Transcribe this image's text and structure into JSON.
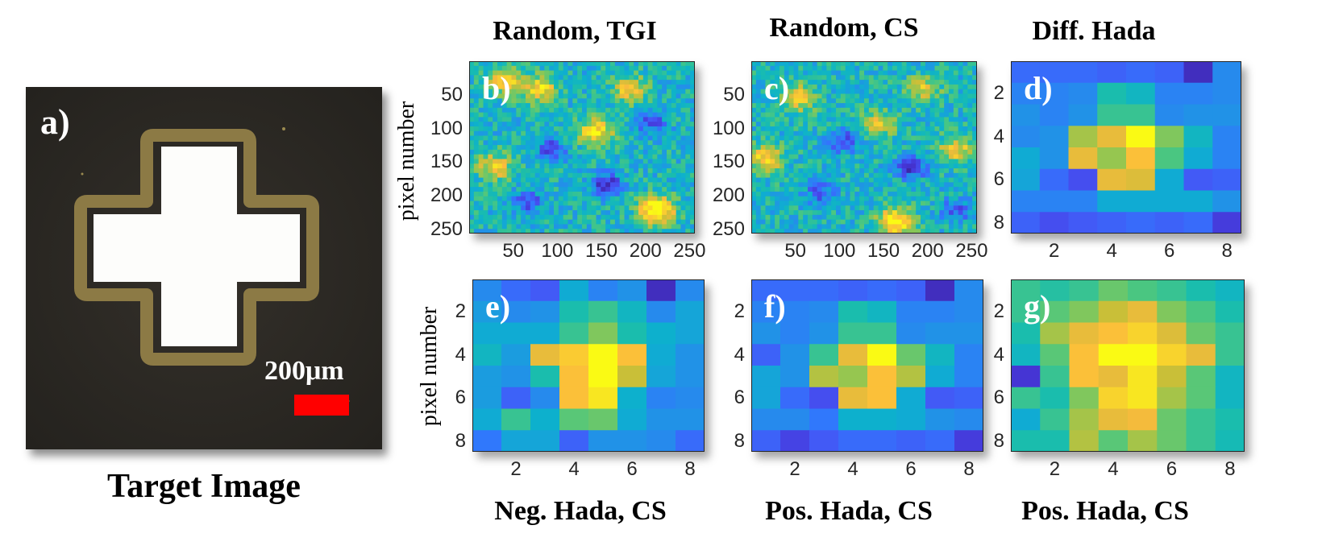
{
  "target": {
    "label": "a)",
    "caption": "Target Image",
    "scale_bar_text": "200μm",
    "scale_bar_color": "#ff0000"
  },
  "chart_data": [
    {
      "type": "heatmap",
      "id": "b",
      "title": "Random, TGI",
      "panel_label": "b)",
      "ylabel": "pixel number",
      "xlabel": "",
      "x_ticks": [
        "50",
        "100",
        "150",
        "200",
        "250"
      ],
      "y_ticks": [
        "50",
        "100",
        "150",
        "200",
        "250"
      ],
      "resolution": 48,
      "colormap": "parula",
      "blobs": [
        [
          0.82,
          0.85,
          0.7
        ],
        [
          0.55,
          0.4,
          0.5
        ],
        [
          0.3,
          0.15,
          0.45
        ],
        [
          0.1,
          0.6,
          0.4
        ],
        [
          0.7,
          0.15,
          0.4
        ],
        [
          0.15,
          0.1,
          0.4
        ]
      ],
      "dips": [
        [
          0.6,
          0.7,
          0.4
        ],
        [
          0.35,
          0.5,
          0.35
        ],
        [
          0.8,
          0.35,
          0.3
        ],
        [
          0.25,
          0.8,
          0.3
        ]
      ]
    },
    {
      "type": "heatmap",
      "id": "c",
      "title": "Random, CS",
      "panel_label": "c)",
      "ylabel": "",
      "xlabel": "",
      "x_ticks": [
        "50",
        "100",
        "150",
        "200",
        "250"
      ],
      "y_ticks": [
        "50",
        "100",
        "150",
        "200",
        "250"
      ],
      "resolution": 48,
      "colormap": "parula",
      "blobs": [
        [
          0.63,
          0.92,
          0.6
        ],
        [
          0.05,
          0.55,
          0.45
        ],
        [
          0.9,
          0.5,
          0.4
        ],
        [
          0.2,
          0.2,
          0.4
        ],
        [
          0.75,
          0.15,
          0.35
        ],
        [
          0.55,
          0.35,
          0.35
        ]
      ],
      "dips": [
        [
          0.7,
          0.6,
          0.4
        ],
        [
          0.4,
          0.45,
          0.35
        ],
        [
          0.9,
          0.85,
          0.3
        ],
        [
          0.3,
          0.75,
          0.3
        ]
      ]
    },
    {
      "type": "heatmap",
      "id": "d",
      "title": "Diff. Hada",
      "panel_label": "d)",
      "ylabel": "",
      "xlabel": "",
      "x_ticks": [
        "2",
        "4",
        "6",
        "8"
      ],
      "y_ticks": [
        "2",
        "4",
        "6",
        "8"
      ],
      "colormap": "parula",
      "z": [
        [
          0.22,
          0.22,
          0.22,
          0.2,
          0.22,
          0.2,
          0.04,
          0.3
        ],
        [
          0.28,
          0.28,
          0.3,
          0.5,
          0.45,
          0.28,
          0.28,
          0.3
        ],
        [
          0.32,
          0.28,
          0.32,
          0.55,
          0.55,
          0.3,
          0.32,
          0.32
        ],
        [
          0.3,
          0.32,
          0.7,
          0.8,
          1.0,
          0.65,
          0.45,
          0.28
        ],
        [
          0.4,
          0.32,
          0.8,
          0.68,
          0.85,
          0.58,
          0.4,
          0.28
        ],
        [
          0.38,
          0.22,
          0.15,
          0.8,
          0.78,
          0.4,
          0.18,
          0.2
        ],
        [
          0.28,
          0.28,
          0.28,
          0.4,
          0.4,
          0.4,
          0.4,
          0.32
        ],
        [
          0.2,
          0.15,
          0.18,
          0.2,
          0.22,
          0.2,
          0.22,
          0.1
        ]
      ]
    },
    {
      "type": "heatmap",
      "id": "e",
      "title": "Neg. Hada, CS",
      "panel_label": "e)",
      "ylabel": "pixel number",
      "xlabel": "",
      "x_ticks": [
        "2",
        "4",
        "6",
        "8"
      ],
      "y_ticks": [
        "2",
        "4",
        "6",
        "8"
      ],
      "colormap": "parula",
      "z": [
        [
          0.3,
          0.22,
          0.18,
          0.4,
          0.28,
          0.32,
          0.04,
          0.3
        ],
        [
          0.35,
          0.3,
          0.32,
          0.5,
          0.55,
          0.45,
          0.3,
          0.38
        ],
        [
          0.4,
          0.4,
          0.4,
          0.55,
          0.65,
          0.5,
          0.42,
          0.38
        ],
        [
          0.45,
          0.35,
          0.8,
          0.88,
          1.0,
          0.85,
          0.4,
          0.32
        ],
        [
          0.35,
          0.32,
          0.5,
          0.85,
          1.0,
          0.75,
          0.38,
          0.32
        ],
        [
          0.35,
          0.2,
          0.3,
          0.85,
          0.95,
          0.42,
          0.28,
          0.3
        ],
        [
          0.4,
          0.55,
          0.42,
          0.6,
          0.62,
          0.4,
          0.32,
          0.32
        ],
        [
          0.25,
          0.38,
          0.38,
          0.2,
          0.32,
          0.32,
          0.3,
          0.22
        ]
      ]
    },
    {
      "type": "heatmap",
      "id": "f",
      "title": "Pos. Hada, CS",
      "panel_label": "f)",
      "ylabel": "",
      "xlabel": "",
      "x_ticks": [
        "2",
        "4",
        "6",
        "8"
      ],
      "y_ticks": [
        "2",
        "4",
        "6",
        "8"
      ],
      "colormap": "parula",
      "z": [
        [
          0.22,
          0.22,
          0.22,
          0.2,
          0.22,
          0.2,
          0.04,
          0.3
        ],
        [
          0.28,
          0.28,
          0.3,
          0.5,
          0.45,
          0.28,
          0.28,
          0.3
        ],
        [
          0.32,
          0.28,
          0.32,
          0.55,
          0.55,
          0.3,
          0.32,
          0.32
        ],
        [
          0.2,
          0.32,
          0.55,
          0.8,
          1.0,
          0.62,
          0.45,
          0.28
        ],
        [
          0.38,
          0.32,
          0.72,
          0.68,
          0.85,
          0.72,
          0.4,
          0.28
        ],
        [
          0.38,
          0.22,
          0.15,
          0.8,
          0.85,
          0.4,
          0.18,
          0.2
        ],
        [
          0.3,
          0.3,
          0.25,
          0.42,
          0.42,
          0.4,
          0.32,
          0.3
        ],
        [
          0.2,
          0.12,
          0.18,
          0.22,
          0.22,
          0.2,
          0.22,
          0.1
        ]
      ]
    },
    {
      "type": "heatmap",
      "id": "g",
      "title": "Pos. Hada, CS",
      "panel_label": "g)",
      "ylabel": "",
      "xlabel": "",
      "x_ticks": [
        "2",
        "4",
        "6",
        "8"
      ],
      "y_ticks": [
        "2",
        "4",
        "6",
        "8"
      ],
      "colormap": "parula",
      "z": [
        [
          0.55,
          0.52,
          0.55,
          0.62,
          0.58,
          0.55,
          0.5,
          0.45
        ],
        [
          0.55,
          0.6,
          0.65,
          0.75,
          0.8,
          0.65,
          0.58,
          0.5
        ],
        [
          0.5,
          0.7,
          0.8,
          0.85,
          0.9,
          0.78,
          0.62,
          0.55
        ],
        [
          0.45,
          0.6,
          0.85,
          1.0,
          1.0,
          0.9,
          0.8,
          0.55
        ],
        [
          0.08,
          0.55,
          0.85,
          0.8,
          0.95,
          0.75,
          0.6,
          0.45
        ],
        [
          0.55,
          0.5,
          0.65,
          0.9,
          0.95,
          0.7,
          0.6,
          0.45
        ],
        [
          0.4,
          0.55,
          0.7,
          0.8,
          0.82,
          0.62,
          0.55,
          0.5
        ],
        [
          0.5,
          0.5,
          0.72,
          0.6,
          0.7,
          0.62,
          0.55,
          0.48
        ]
      ]
    }
  ]
}
